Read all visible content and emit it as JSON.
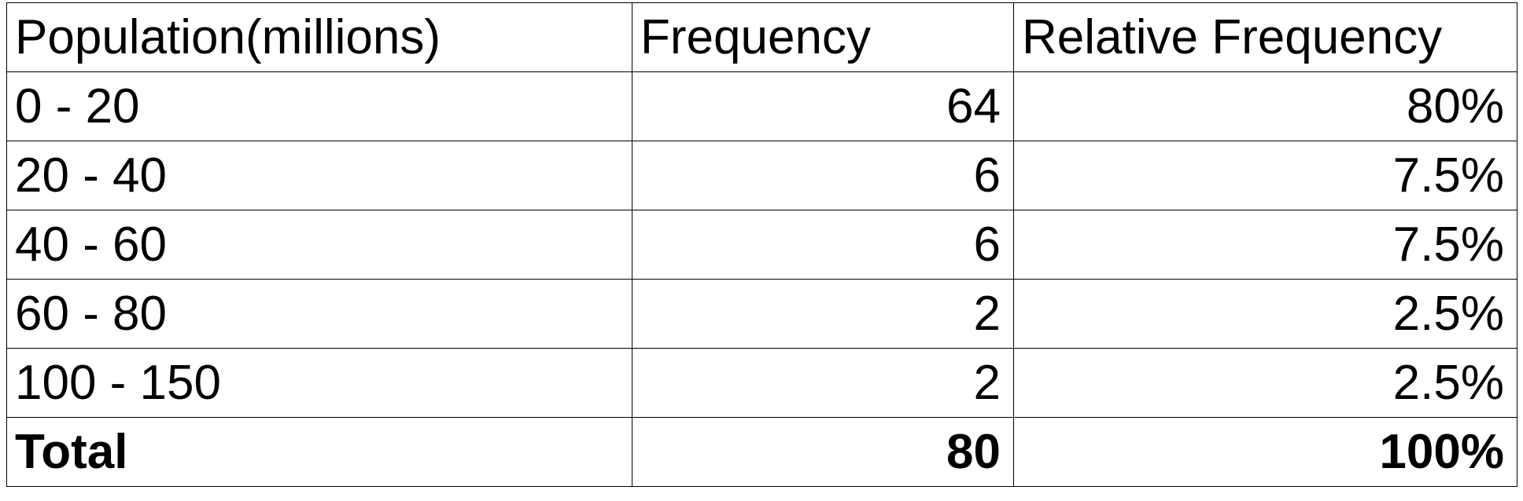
{
  "chart_data": {
    "type": "table",
    "columns": [
      "Population(millions)",
      "Frequency",
      "Relative Frequency"
    ],
    "rows": [
      [
        "0 - 20",
        "64",
        "80%"
      ],
      [
        "20 - 40",
        "6",
        "7.5%"
      ],
      [
        "40 - 60",
        "6",
        "7.5%"
      ],
      [
        "60 - 80",
        "2",
        "2.5%"
      ],
      [
        "100 - 150",
        "2",
        "2.5%"
      ]
    ],
    "total": [
      "Total",
      "80",
      "100%"
    ]
  }
}
